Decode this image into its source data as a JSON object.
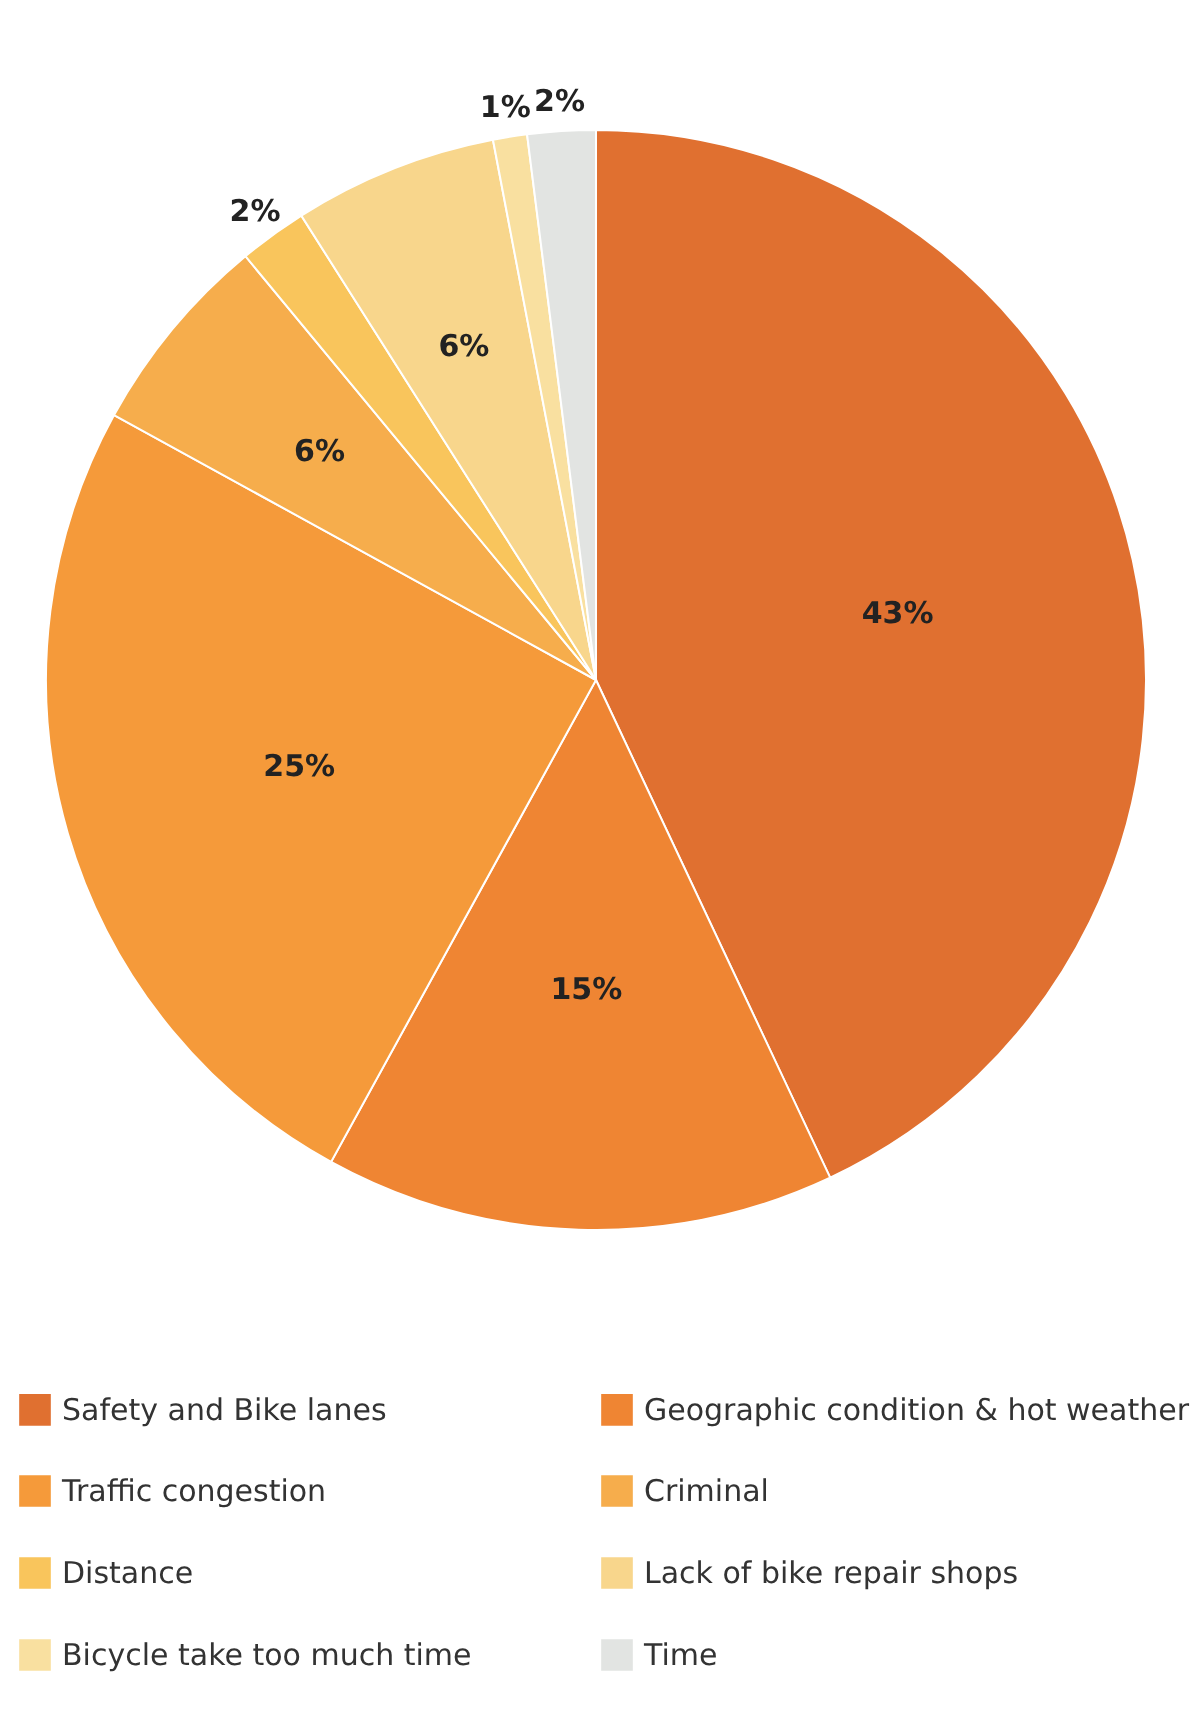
{
  "chart_data": {
    "type": "pie",
    "categories": [
      "Safety and Bike lanes",
      "Geographic condition & hot weather",
      "Traffic congestion",
      "Criminal",
      "Distance",
      "Lack of bike repair shops",
      "Bicycle take too much time",
      "Time"
    ],
    "values": [
      43,
      15,
      25,
      6,
      2,
      6,
      1,
      2
    ],
    "colors": [
      "#e07030",
      "#ef8533",
      "#f59a3a",
      "#f6ad4c",
      "#f9c55c",
      "#f8d68c",
      "#f9e0a0",
      "#e2e4e2"
    ],
    "value_labels": [
      "43%",
      "15%",
      "25%",
      "6%",
      "2%",
      "6%",
      "1%",
      "2%"
    ],
    "legend": "bottom"
  }
}
